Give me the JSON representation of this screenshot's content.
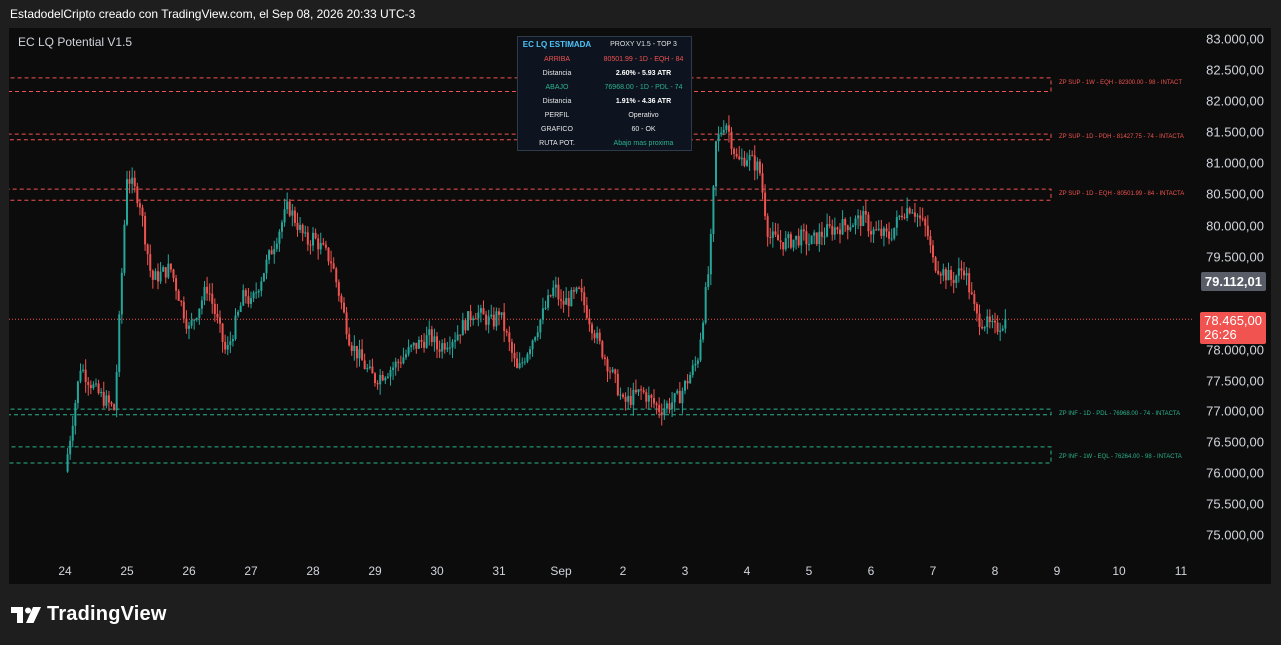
{
  "caption": "EstadodelCripto creado con TradingView.com, el Sep 08, 2026 20:33 UTC-3",
  "indicator_name": "EC LQ Potential V1.5",
  "brand": {
    "name": "TradingView",
    "logo_icon": "tradingview-logo-icon"
  },
  "colors": {
    "up": "#26a69a",
    "down": "#ef5350",
    "support": "#2bb38d",
    "resistance": "#f05350",
    "info_header": "#4fc3f7"
  },
  "price_axis": {
    "labels": [
      "83.000,00",
      "82.500,00",
      "82.000,00",
      "81.500,00",
      "81.000,00",
      "80.500,00",
      "80.000,00",
      "79.500,00",
      "78.000,00",
      "77.500,00",
      "77.000,00",
      "76.500,00",
      "76.000,00",
      "75.500,00",
      "75.000,00"
    ],
    "values": [
      83000,
      82500,
      82000,
      81500,
      81000,
      80500,
      80000,
      79500,
      78000,
      77500,
      77000,
      76500,
      76000,
      75500,
      75000
    ],
    "marker_price": "79.112,01",
    "last_price": "78.465,00",
    "countdown": "26:26"
  },
  "time_axis": {
    "labels": [
      "24",
      "25",
      "26",
      "27",
      "28",
      "29",
      "30",
      "31",
      "Sep",
      "2",
      "3",
      "4",
      "5",
      "6",
      "7",
      "8",
      "9",
      "10",
      "11"
    ]
  },
  "info_table": {
    "title": "EC LQ ESTIMADA",
    "proxy": "PROXY V1.5 - TOP 3",
    "rows": [
      {
        "key": "ARRIBA",
        "value": "80501.99 - 1D - EQH - 84",
        "tone": "red"
      },
      {
        "key": "Distancia",
        "value": "2.60% - 5.93 ATR",
        "tone": "bold"
      },
      {
        "key": "ABAJO",
        "value": "76968.00 - 1D - PDL - 74",
        "tone": "green"
      },
      {
        "key": "Distancia",
        "value": "1.91% - 4.36 ATR",
        "tone": "bold"
      },
      {
        "key": "PERFIL",
        "value": "Operativo",
        "tone": "white"
      },
      {
        "key": "GRAFICO",
        "value": "60 - OK",
        "tone": "white"
      },
      {
        "key": "RUTA POT.",
        "value": "Abajo mas proxima",
        "tone": "green"
      }
    ]
  },
  "zones": [
    {
      "label": "ZP SUP - 1W - EQH - 82300.00 - 98 - INTACT",
      "kind": "sup",
      "top": 82370,
      "bottom": 82150,
      "start_day": 3.88
    },
    {
      "label": "ZP SUP - 1D - PDH - 81427.75 - 74 - INTACTA",
      "kind": "sup",
      "top": 81460,
      "bottom": 81370,
      "start_day": 4.85
    },
    {
      "label": "ZP SUP - 1D - EQH - 80501.99 - 84 - INTACTA",
      "kind": "sup",
      "top": 80570,
      "bottom": 80390,
      "start_day": 6.85
    },
    {
      "label": "ZP INF - 1D - PDL - 76968.00 - 74 - INTACTA",
      "kind": "inf",
      "top": 77010,
      "bottom": 76920,
      "start_day": 3.88
    },
    {
      "label": "ZP INF - 1W - EQL - 76264.00 - 98 - INTACTA",
      "kind": "inf",
      "top": 76400,
      "bottom": 76140,
      "start_day": 2.88
    }
  ],
  "chart_data": {
    "type": "candlestick",
    "title": "EC LQ Potential V1.5",
    "x_labels": [
      "24",
      "25",
      "26",
      "27",
      "28",
      "29",
      "30",
      "31",
      "Sep",
      "2",
      "3",
      "4",
      "5",
      "6",
      "7",
      "8",
      "9",
      "10",
      "11"
    ],
    "y_range": [
      74800,
      83200
    ],
    "last_price": 78465,
    "grid": false,
    "close_path": [
      [
        24.0,
        76000
      ],
      [
        24.25,
        77700
      ],
      [
        24.5,
        77300
      ],
      [
        24.8,
        77000
      ],
      [
        25.0,
        80800
      ],
      [
        25.2,
        80400
      ],
      [
        25.4,
        79100
      ],
      [
        25.7,
        79300
      ],
      [
        26.0,
        78300
      ],
      [
        26.3,
        79000
      ],
      [
        26.6,
        77900
      ],
      [
        26.9,
        78900
      ],
      [
        27.0,
        78700
      ],
      [
        27.3,
        79500
      ],
      [
        27.6,
        80300
      ],
      [
        27.9,
        79700
      ],
      [
        28.0,
        79800
      ],
      [
        28.3,
        79400
      ],
      [
        28.6,
        78100
      ],
      [
        28.9,
        77600
      ],
      [
        29.0,
        77500
      ],
      [
        29.3,
        77700
      ],
      [
        29.6,
        78000
      ],
      [
        29.9,
        78200
      ],
      [
        30.0,
        78000
      ],
      [
        30.3,
        78200
      ],
      [
        30.6,
        78600
      ],
      [
        30.9,
        78400
      ],
      [
        31.0,
        78600
      ],
      [
        31.3,
        77600
      ],
      [
        31.6,
        78300
      ],
      [
        31.9,
        79000
      ],
      [
        32.0,
        78700
      ],
      [
        32.3,
        78900
      ],
      [
        32.6,
        78100
      ],
      [
        32.9,
        77400
      ],
      [
        33.0,
        77100
      ],
      [
        33.3,
        77300
      ],
      [
        33.6,
        77000
      ],
      [
        33.9,
        77200
      ],
      [
        34.0,
        77400
      ],
      [
        34.2,
        77800
      ],
      [
        34.4,
        79400
      ],
      [
        34.5,
        81300
      ],
      [
        34.65,
        81700
      ],
      [
        34.85,
        81000
      ],
      [
        35.0,
        81100
      ],
      [
        35.2,
        80900
      ],
      [
        35.35,
        79800
      ],
      [
        35.6,
        79700
      ],
      [
        35.9,
        79800
      ],
      [
        36.0,
        79700
      ],
      [
        36.3,
        79900
      ],
      [
        36.6,
        80000
      ],
      [
        36.9,
        80100
      ],
      [
        37.0,
        79900
      ],
      [
        37.3,
        79800
      ],
      [
        37.5,
        80200
      ],
      [
        37.65,
        80300
      ],
      [
        37.9,
        79900
      ],
      [
        38.0,
        79400
      ],
      [
        38.3,
        79100
      ],
      [
        38.5,
        79300
      ],
      [
        38.7,
        78500
      ],
      [
        38.85,
        78400
      ],
      [
        39.0,
        78300
      ],
      [
        39.1,
        78400
      ],
      [
        39.2,
        78465
      ]
    ]
  }
}
